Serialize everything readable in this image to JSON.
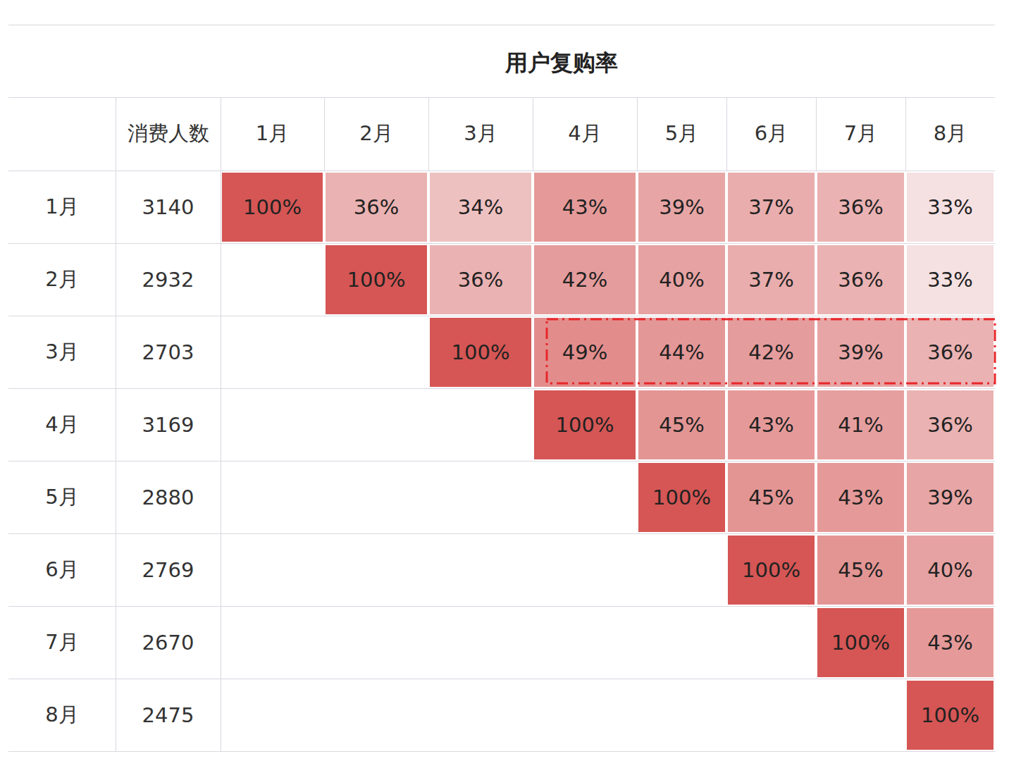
{
  "chart_data": {
    "type": "heatmap",
    "title": "用户复购率",
    "row_header": "消费人数",
    "columns": [
      "1月",
      "2月",
      "3月",
      "4月",
      "5月",
      "6月",
      "7月",
      "8月"
    ],
    "rows": [
      "1月",
      "2月",
      "3月",
      "4月",
      "5月",
      "6月",
      "7月",
      "8月"
    ],
    "counts": [
      3140,
      2932,
      2703,
      3169,
      2880,
      2769,
      2670,
      2475
    ],
    "cells": [
      [
        100,
        36,
        34,
        43,
        39,
        37,
        36,
        33
      ],
      [
        null,
        100,
        36,
        42,
        40,
        37,
        36,
        33
      ],
      [
        null,
        null,
        100,
        49,
        44,
        42,
        39,
        36
      ],
      [
        null,
        null,
        null,
        100,
        45,
        43,
        41,
        36
      ],
      [
        null,
        null,
        null,
        null,
        100,
        45,
        43,
        39
      ],
      [
        null,
        null,
        null,
        null,
        null,
        100,
        45,
        40
      ],
      [
        null,
        null,
        null,
        null,
        null,
        null,
        100,
        43
      ],
      [
        null,
        null,
        null,
        null,
        null,
        null,
        null,
        100
      ]
    ],
    "value_labels": [
      [
        "100%",
        "36%",
        "34%",
        "43%",
        "39%",
        "37%",
        "36%",
        "33%"
      ],
      [
        null,
        "100%",
        "36%",
        "42%",
        "40%",
        "37%",
        "36%",
        "33%"
      ],
      [
        null,
        null,
        "100%",
        "49%",
        "44%",
        "42%",
        "39%",
        "36%"
      ],
      [
        null,
        null,
        null,
        "100%",
        "45%",
        "43%",
        "41%",
        "36%"
      ],
      [
        null,
        null,
        null,
        null,
        "100%",
        "45%",
        "43%",
        "39%"
      ],
      [
        null,
        null,
        null,
        null,
        null,
        "100%",
        "45%",
        "40%"
      ],
      [
        null,
        null,
        null,
        null,
        null,
        null,
        "100%",
        "43%"
      ],
      [
        null,
        null,
        null,
        null,
        null,
        null,
        null,
        "100%"
      ]
    ]
  }
}
